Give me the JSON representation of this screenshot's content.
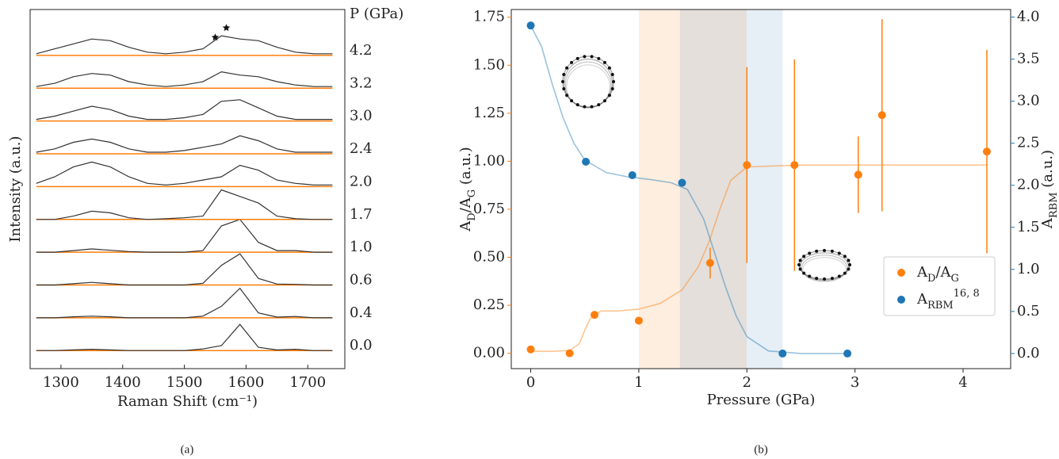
{
  "chart_data": [
    {
      "type": "line",
      "x_label": "Raman Shift (cm⁻¹)",
      "y_label": "Intensity (a.u.)",
      "pressure_header": "P (GPa)",
      "caption": "(a)",
      "x": [
        1260,
        1290,
        1320,
        1350,
        1380,
        1410,
        1440,
        1470,
        1500,
        1530,
        1560,
        1590,
        1620,
        1650,
        1680,
        1710,
        1740
      ],
      "xlim": [
        1250,
        1760
      ],
      "xticks": [
        1300,
        1400,
        1500,
        1600,
        1700
      ],
      "ylim": [
        -0.55,
        10.4
      ],
      "color": "#333333",
      "baseline_color": "#ff7f0e",
      "star_positions": [
        1550,
        1568
      ],
      "series": [
        {
          "name": "0.0",
          "values": [
            0,
            0,
            0.02,
            0.04,
            0.02,
            0,
            0,
            0,
            0,
            0.05,
            0.15,
            0.8,
            0.1,
            0.02,
            0.04,
            0,
            0
          ]
        },
        {
          "name": "0.4",
          "values": [
            0,
            0,
            0.03,
            0.05,
            0.03,
            0,
            0,
            0,
            0,
            0.05,
            0.35,
            0.9,
            0.15,
            0.02,
            0.04,
            0,
            0
          ]
        },
        {
          "name": "0.6",
          "values": [
            0,
            0,
            0.04,
            0.08,
            0.04,
            0,
            0,
            0,
            0,
            0.05,
            0.6,
            0.95,
            0.2,
            0.03,
            0.02,
            0,
            0
          ]
        },
        {
          "name": "1.0",
          "values": [
            0,
            0,
            0.05,
            0.1,
            0.06,
            0.02,
            0,
            0,
            0,
            0.05,
            0.8,
            1.0,
            0.3,
            0.05,
            0.05,
            0,
            0
          ]
        },
        {
          "name": "1.7",
          "values": [
            0,
            0,
            0.1,
            0.25,
            0.2,
            0.05,
            0,
            0.02,
            0.05,
            0.1,
            0.9,
            0.7,
            0.5,
            0.1,
            0.02,
            0,
            0
          ]
        },
        {
          "name": "2.0",
          "values": [
            0.1,
            0.3,
            0.6,
            0.75,
            0.6,
            0.3,
            0.1,
            0.05,
            0.1,
            0.2,
            0.3,
            0.65,
            0.5,
            0.2,
            0.1,
            0.05,
            0.05
          ]
        },
        {
          "name": "2.4",
          "values": [
            0.05,
            0.15,
            0.35,
            0.45,
            0.35,
            0.15,
            0.05,
            0.05,
            0.1,
            0.2,
            0.3,
            0.55,
            0.4,
            0.15,
            0.05,
            0.05,
            0.05
          ]
        },
        {
          "name": "3.0",
          "values": [
            0.05,
            0.15,
            0.3,
            0.45,
            0.35,
            0.15,
            0.05,
            0.05,
            0.1,
            0.2,
            0.6,
            0.65,
            0.4,
            0.15,
            0.05,
            0.05,
            0.05
          ]
        },
        {
          "name": "3.2",
          "values": [
            0.05,
            0.15,
            0.35,
            0.45,
            0.4,
            0.2,
            0.1,
            0.05,
            0.1,
            0.2,
            0.5,
            0.4,
            0.35,
            0.2,
            0.1,
            0.05,
            0.05
          ]
        },
        {
          "name": "4.2",
          "values": [
            0.05,
            0.2,
            0.35,
            0.5,
            0.45,
            0.25,
            0.1,
            0.05,
            0.1,
            0.2,
            0.6,
            0.5,
            0.45,
            0.25,
            0.1,
            0.05,
            0.05
          ]
        }
      ]
    },
    {
      "type": "scatter",
      "x_label": "Pressure (GPa)",
      "caption": "(b)",
      "y_label_parts": [
        {
          "text": "A"
        },
        {
          "text": "D",
          "shift": "sub"
        },
        {
          "text": "/A"
        },
        {
          "text": "G",
          "shift": "sub"
        },
        {
          "text": " (a.u.)"
        }
      ],
      "y2_label_parts": [
        {
          "text": "A"
        },
        {
          "text": "RBM",
          "shift": "sub"
        },
        {
          "text": " (a.u.)"
        }
      ],
      "xlim": [
        -0.18,
        4.44
      ],
      "xticks": [
        0,
        1,
        2,
        3,
        4
      ],
      "ylim": [
        -0.08,
        1.79
      ],
      "yticks": [
        {
          "value": 0,
          "label": "0.00"
        },
        {
          "value": 0.25,
          "label": "0.25"
        },
        {
          "value": 0.5,
          "label": "0.50"
        },
        {
          "value": 0.75,
          "label": "0.75"
        },
        {
          "value": 1,
          "label": "1.00"
        },
        {
          "value": 1.25,
          "label": "1.25"
        },
        {
          "value": 1.5,
          "label": "1.50"
        },
        {
          "value": 1.75,
          "label": "1.75"
        }
      ],
      "y2lim": [
        -0.18,
        4.09
      ],
      "y2ticks": [
        {
          "value": 0,
          "label": "0.0"
        },
        0.5,
        {
          "value": 1,
          "label": "1.0"
        },
        1.5,
        {
          "value": 2,
          "label": "2.0"
        },
        2.5,
        {
          "value": 3,
          "label": "3.0"
        },
        3.5,
        {
          "value": 4,
          "label": "4.0"
        }
      ],
      "spans": [
        {
          "xmin": 1.0,
          "xmax": 1.38,
          "color": "#fdeee0"
        },
        {
          "xmin": 1.38,
          "xmax": 2.0,
          "color": "#e4dfdb"
        },
        {
          "xmin": 2.0,
          "xmax": 2.33,
          "color": "#e6eef6"
        }
      ],
      "legend": "center right",
      "series": [
        {
          "name_parts": [
            {
              "text": "A"
            },
            {
              "text": "D",
              "shift": "sub"
            },
            {
              "text": "/A"
            },
            {
              "text": "G",
              "shift": "sub"
            }
          ],
          "color": "#ff7f0e",
          "axis": "y",
          "x": [
            0,
            0.36,
            0.59,
            1.0,
            1.66,
            2.0,
            2.44,
            3.03,
            3.25,
            4.22
          ],
          "values": [
            0.02,
            0.0,
            0.2,
            0.17,
            0.47,
            0.98,
            0.98,
            0.93,
            1.24,
            1.05
          ],
          "errors": [
            null,
            null,
            null,
            null,
            0.08,
            0.51,
            0.55,
            0.2,
            0.5,
            0.53
          ],
          "fit_x": [
            0,
            0.2,
            0.36,
            0.45,
            0.5,
            0.55,
            0.65,
            0.8,
            1.0,
            1.2,
            1.4,
            1.55,
            1.65,
            1.75,
            1.85,
            2.0,
            2.5,
            3,
            3.5,
            4,
            4.22
          ],
          "fit_values": [
            0.01,
            0.01,
            0.015,
            0.05,
            0.12,
            0.18,
            0.22,
            0.22,
            0.23,
            0.26,
            0.33,
            0.45,
            0.58,
            0.75,
            0.9,
            0.97,
            0.98,
            0.98,
            0.98,
            0.98,
            0.98
          ]
        },
        {
          "name_parts": [
            {
              "text": "A"
            },
            {
              "text": "RBM",
              "shift": "sub"
            },
            {
              "text": "16, 8",
              "shift": "super"
            }
          ],
          "color": "#1f77b4",
          "axis": "y2",
          "x": [
            0,
            0.51,
            0.94,
            1.4,
            2.33,
            2.93
          ],
          "values": [
            3.9,
            2.28,
            2.12,
            2.03,
            0,
            0
          ],
          "fit_x": [
            0,
            0.1,
            0.2,
            0.3,
            0.4,
            0.5,
            0.7,
            0.9,
            1.1,
            1.3,
            1.45,
            1.6,
            1.7,
            1.8,
            1.9,
            2.0,
            2.2,
            2.5,
            2.93
          ],
          "fit_values": [
            3.9,
            3.65,
            3.2,
            2.8,
            2.5,
            2.3,
            2.15,
            2.1,
            2.07,
            2.03,
            1.95,
            1.6,
            1.2,
            0.8,
            0.45,
            0.2,
            0.03,
            0,
            0
          ]
        }
      ]
    }
  ]
}
